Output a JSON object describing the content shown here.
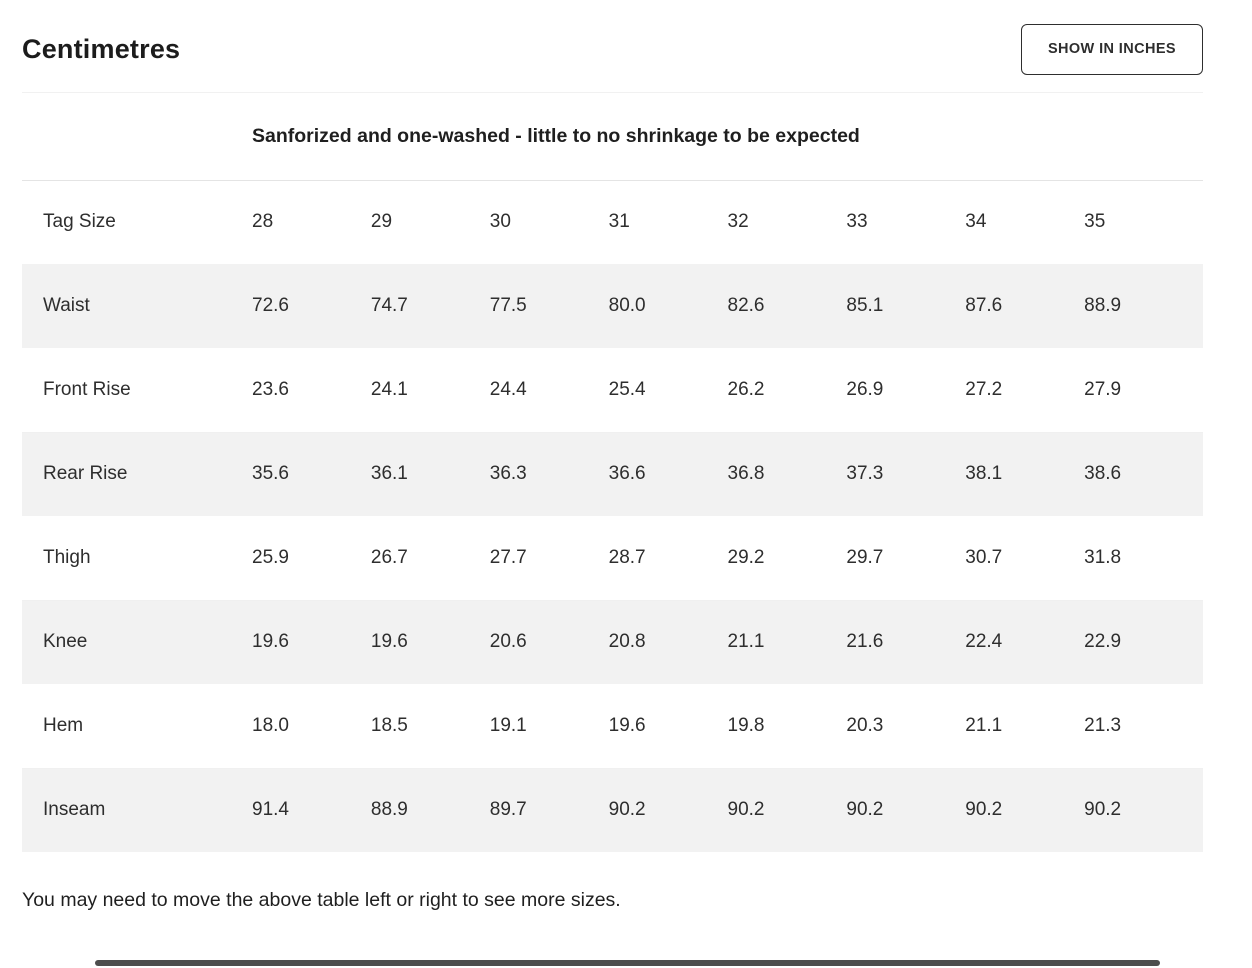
{
  "page": {
    "title": "Centimetres",
    "toggle_button_label": "SHOW IN INCHES",
    "footer_note": "You may need to move the above table left or right to see more sizes."
  },
  "colors": {
    "stripe": "#f2f2f2",
    "text": "#2e2e2e",
    "button_border": "#2e2e2e"
  },
  "size_table": {
    "note": "Sanforized and one-washed - little to no shrinkage to be expected",
    "header": {
      "label": "Tag Size",
      "sizes": [
        "28",
        "29",
        "30",
        "31",
        "32",
        "33",
        "34",
        "35"
      ]
    },
    "rows": [
      {
        "label": "Waist",
        "values": [
          "72.6",
          "74.7",
          "77.5",
          "80.0",
          "82.6",
          "85.1",
          "87.6",
          "88.9"
        ]
      },
      {
        "label": "Front Rise",
        "values": [
          "23.6",
          "24.1",
          "24.4",
          "25.4",
          "26.2",
          "26.9",
          "27.2",
          "27.9"
        ]
      },
      {
        "label": "Rear Rise",
        "values": [
          "35.6",
          "36.1",
          "36.3",
          "36.6",
          "36.8",
          "37.3",
          "38.1",
          "38.6"
        ]
      },
      {
        "label": "Thigh",
        "values": [
          "25.9",
          "26.7",
          "27.7",
          "28.7",
          "29.2",
          "29.7",
          "30.7",
          "31.8"
        ]
      },
      {
        "label": "Knee",
        "values": [
          "19.6",
          "19.6",
          "20.6",
          "20.8",
          "21.1",
          "21.6",
          "22.4",
          "22.9"
        ]
      },
      {
        "label": "Hem",
        "values": [
          "18.0",
          "18.5",
          "19.1",
          "19.6",
          "19.8",
          "20.3",
          "21.1",
          "21.3"
        ]
      },
      {
        "label": "Inseam",
        "values": [
          "91.4",
          "88.9",
          "89.7",
          "90.2",
          "90.2",
          "90.2",
          "90.2",
          "90.2"
        ]
      }
    ]
  }
}
